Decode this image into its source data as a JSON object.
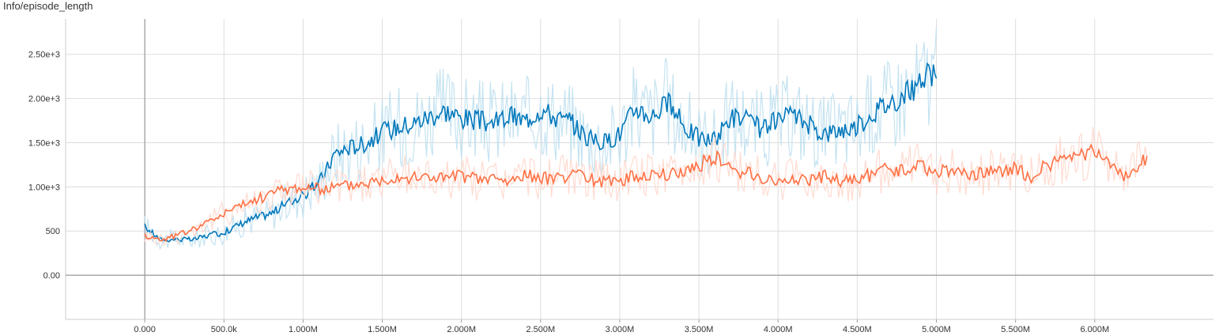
{
  "title": "Info/episode_length",
  "colors": {
    "blue": "#0077bb",
    "blue_light": "#bfe0f0",
    "orange": "#ff7043",
    "orange_light": "#ffd7cc",
    "grid": "#dddddd",
    "axis": "#999999"
  },
  "chart_data": {
    "type": "line",
    "title": "Info/episode_length",
    "xlabel": "",
    "ylabel": "",
    "xlim": [
      -500000,
      6750000
    ],
    "ylim": [
      -500,
      2900
    ],
    "grid": true,
    "legend": "none",
    "x_ticks": [
      0,
      500000,
      1000000,
      1500000,
      2000000,
      2500000,
      3000000,
      3500000,
      4000000,
      4500000,
      5000000,
      5500000,
      6000000
    ],
    "x_tick_labels": [
      "0.000",
      "500.0k",
      "1.000M",
      "1.500M",
      "2.000M",
      "2.500M",
      "3.000M",
      "3.500M",
      "4.000M",
      "4.500M",
      "5.000M",
      "5.500M",
      "6.000M"
    ],
    "y_ticks": [
      0,
      500,
      1000,
      1500,
      2000,
      2500
    ],
    "y_tick_labels": [
      "0.00",
      "500",
      "1.00e+3",
      "1.50e+3",
      "2.00e+3",
      "2.50e+3"
    ],
    "series": [
      {
        "color": "#0077bb",
        "x": [
          0,
          100000,
          200000,
          300000,
          400000,
          500000,
          600000,
          700000,
          800000,
          900000,
          1000000,
          1100000,
          1150000,
          1200000,
          1300000,
          1400000,
          1500000,
          1600000,
          1700000,
          1800000,
          1900000,
          2000000,
          2100000,
          2200000,
          2300000,
          2400000,
          2500000,
          2600000,
          2700000,
          2800000,
          2900000,
          3000000,
          3100000,
          3200000,
          3300000,
          3400000,
          3500000,
          3600000,
          3700000,
          3800000,
          3900000,
          4000000,
          4100000,
          4200000,
          4300000,
          4400000,
          4500000,
          4600000,
          4700000,
          4800000,
          4900000,
          4950000,
          5000000
        ],
        "y": [
          550,
          400,
          410,
          400,
          450,
          480,
          580,
          650,
          700,
          820,
          900,
          1050,
          1200,
          1380,
          1450,
          1500,
          1620,
          1680,
          1720,
          1800,
          1860,
          1780,
          1750,
          1720,
          1800,
          1750,
          1880,
          1780,
          1720,
          1550,
          1500,
          1600,
          1900,
          1800,
          1950,
          1700,
          1550,
          1520,
          1800,
          1750,
          1650,
          1750,
          1800,
          1700,
          1600,
          1650,
          1680,
          1850,
          1950,
          2050,
          2150,
          2300,
          2200
        ]
      },
      {
        "color": "#ff7043",
        "x": [
          0,
          100000,
          200000,
          300000,
          400000,
          500000,
          600000,
          700000,
          800000,
          900000,
          1000000,
          1100000,
          1200000,
          1300000,
          1400000,
          1500000,
          1600000,
          1700000,
          1800000,
          1900000,
          2000000,
          2100000,
          2200000,
          2300000,
          2400000,
          2500000,
          2600000,
          2700000,
          2800000,
          2900000,
          3000000,
          3100000,
          3200000,
          3300000,
          3400000,
          3500000,
          3600000,
          3700000,
          3800000,
          3900000,
          4000000,
          4100000,
          4200000,
          4300000,
          4400000,
          4500000,
          4600000,
          4700000,
          4800000,
          4900000,
          5000000,
          5100000,
          5200000,
          5300000,
          5400000,
          5500000,
          5600000,
          5700000,
          5800000,
          5900000,
          6000000,
          6100000,
          6200000,
          6300000,
          6330000
        ],
        "y": [
          450,
          400,
          450,
          520,
          600,
          700,
          780,
          850,
          930,
          980,
          1000,
          970,
          1000,
          1020,
          1050,
          1080,
          1130,
          1100,
          1120,
          1100,
          1130,
          1080,
          1100,
          1050,
          1150,
          1080,
          1130,
          1120,
          1100,
          1050,
          1080,
          1120,
          1150,
          1130,
          1180,
          1250,
          1350,
          1200,
          1150,
          1100,
          1050,
          1100,
          1080,
          1120,
          1050,
          1080,
          1150,
          1200,
          1180,
          1250,
          1150,
          1200,
          1120,
          1150,
          1180,
          1220,
          1100,
          1250,
          1300,
          1350,
          1400,
          1200,
          1100,
          1300,
          1300
        ]
      }
    ]
  }
}
